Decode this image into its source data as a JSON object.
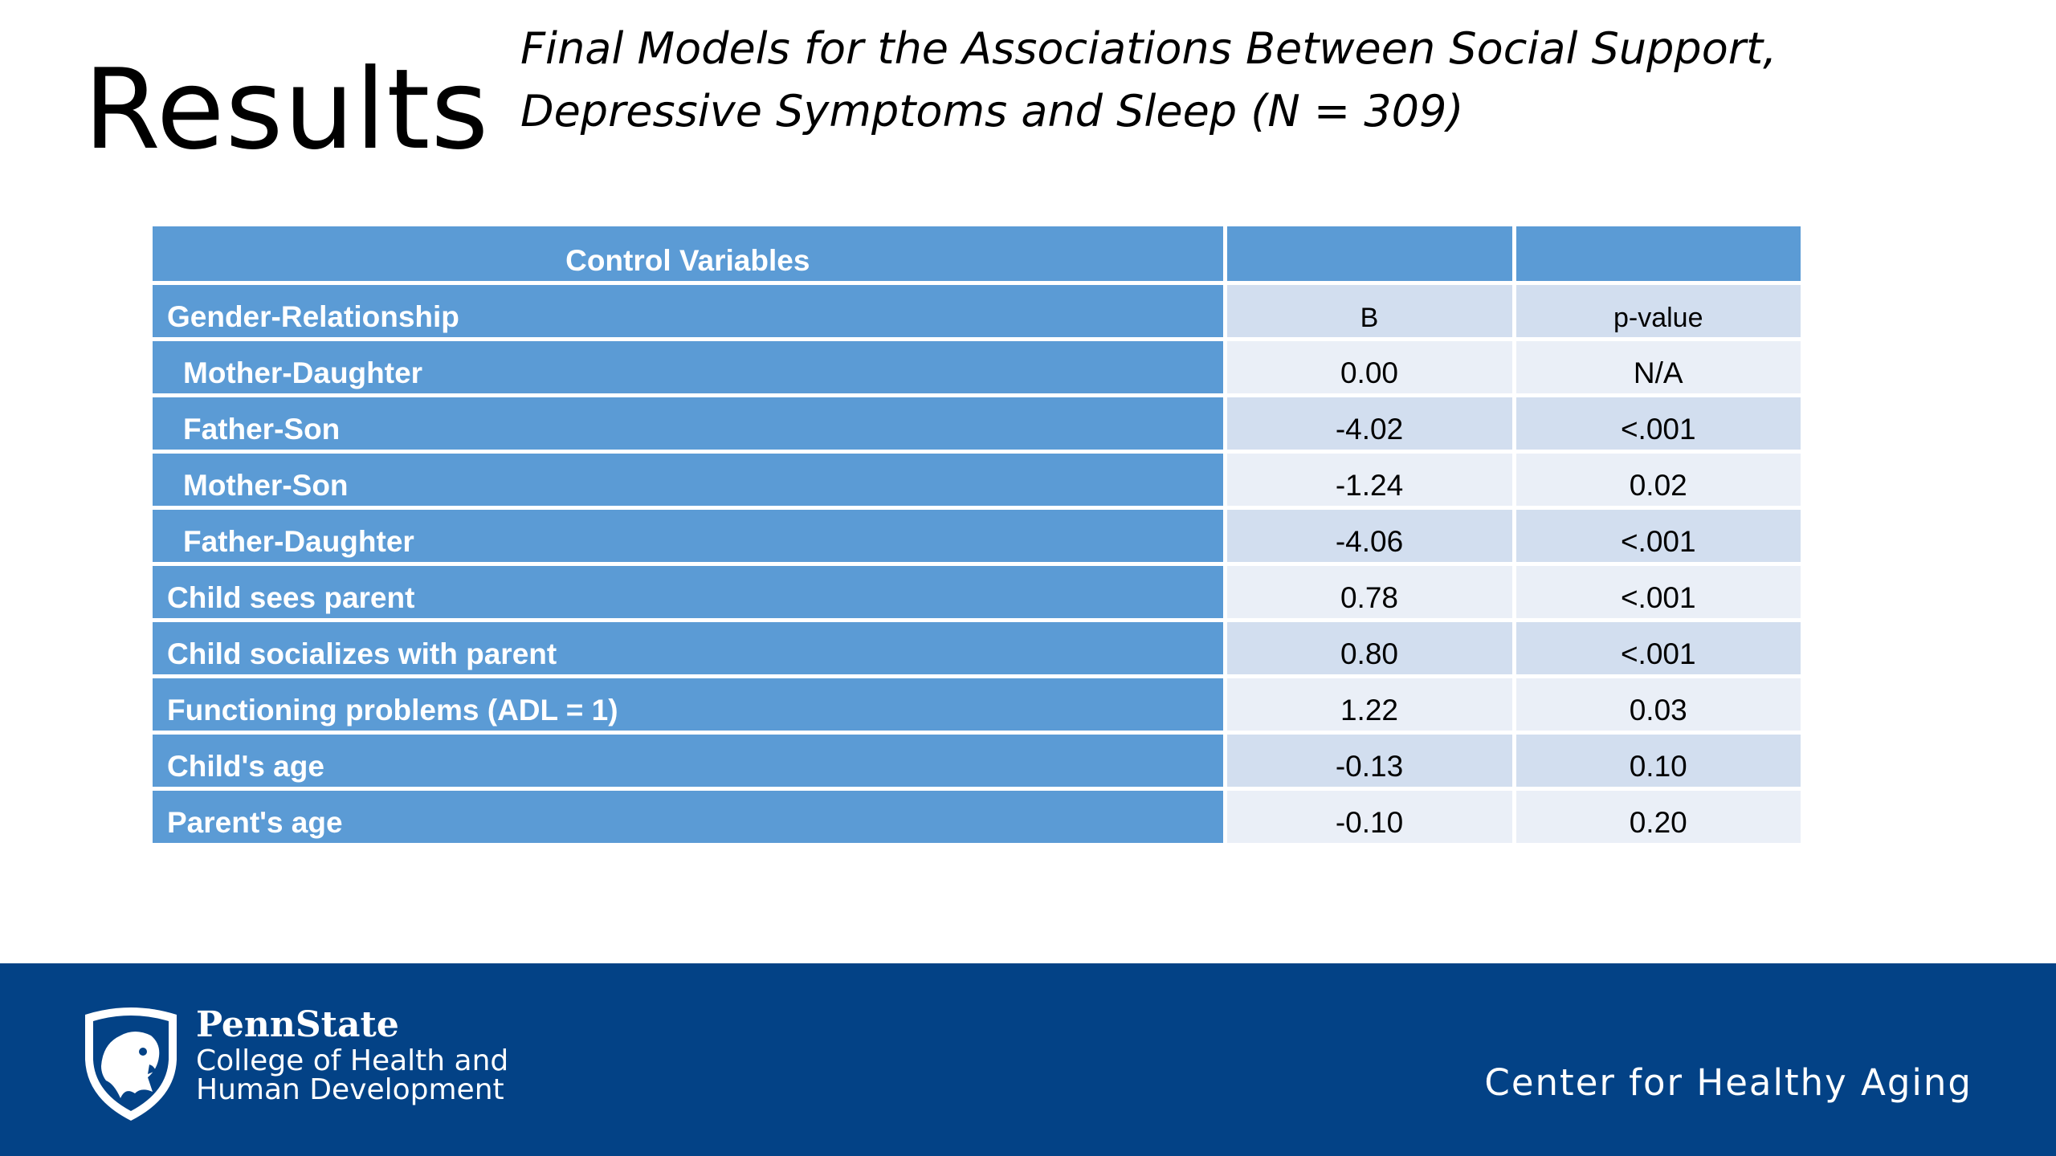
{
  "slide": {
    "title": "Results",
    "subtitle": "Final Models for the Associations Between Social Support, Depressive Symptoms and Sleep (N = 309)"
  },
  "table": {
    "header": "Control Variables",
    "rows": [
      {
        "label": "Gender-Relationship",
        "b": "B",
        "p": "p-value",
        "indent": false,
        "small": true
      },
      {
        "label": "Mother-Daughter",
        "b": "0.00",
        "p": "N/A",
        "indent": true
      },
      {
        "label": "Father-Son",
        "b": "-4.02",
        "p": "<.001",
        "indent": true
      },
      {
        "label": "Mother-Son",
        "b": "-1.24",
        "p": "0.02",
        "indent": true
      },
      {
        "label": "Father-Daughter",
        "b": "-4.06",
        "p": "<.001",
        "indent": true
      },
      {
        "label": "Child sees parent",
        "b": "0.78",
        "p": "<.001",
        "indent": false
      },
      {
        "label": "Child socializes with parent",
        "b": "0.80",
        "p": "<.001",
        "indent": false
      },
      {
        "label": "Functioning problems (ADL = 1)",
        "b": "1.22",
        "p": "0.03",
        "indent": false
      },
      {
        "label": "Child's age",
        "b": "-0.13",
        "p": "0.10",
        "indent": false
      },
      {
        "label": "Parent's age",
        "b": "-0.10",
        "p": "0.20",
        "indent": false
      }
    ]
  },
  "footer": {
    "brand": "PennState",
    "college_line1": "College of Health and",
    "college_line2": "Human Development",
    "center": "Center for Healthy Aging",
    "logo_icon": "nittany-lion-shield-icon"
  },
  "colors": {
    "header_blue": "#5b9bd5",
    "row_dark": "#d2deef",
    "row_light": "#eaeff7",
    "footer_navy": "#034286"
  }
}
